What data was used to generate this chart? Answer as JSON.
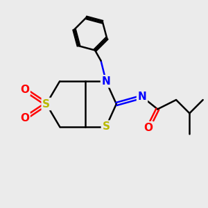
{
  "bg_color": "#ebebeb",
  "bond_color": "#000000",
  "N_color": "#0000ff",
  "S_color": "#b8b800",
  "O_color": "#ff0000",
  "line_width": 1.8,
  "figsize": [
    3.0,
    3.0
  ],
  "dpi": 100,
  "xlim": [
    0,
    10
  ],
  "ylim": [
    0,
    10
  ]
}
